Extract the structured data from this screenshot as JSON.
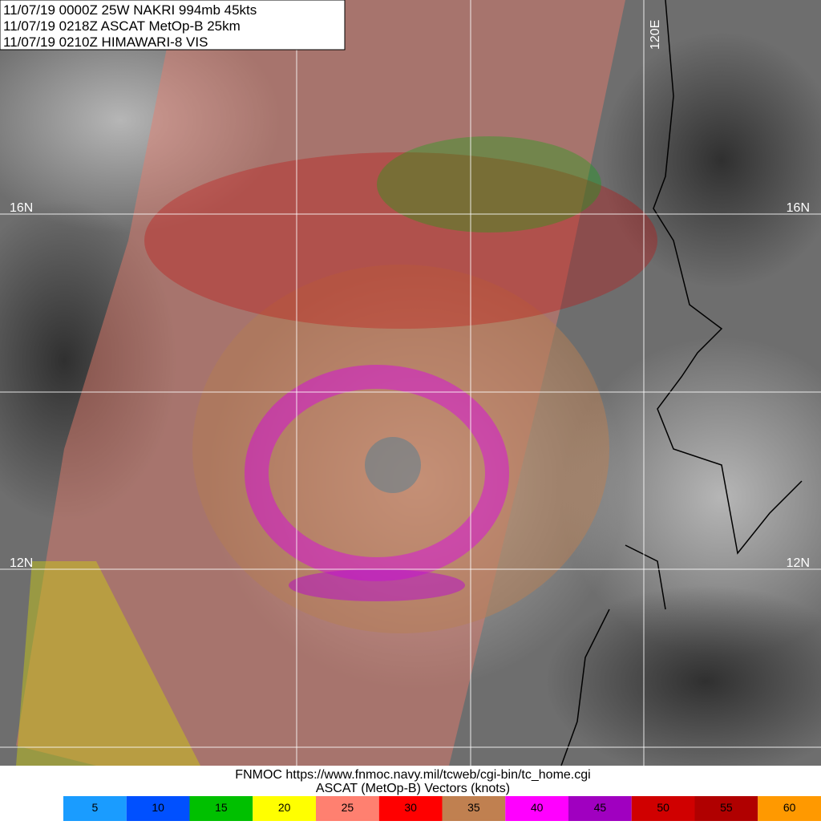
{
  "header": {
    "lines": [
      "11/07/19 0000Z  25W NAKRI 994mb 45kts",
      "11/07/19 0218Z  ASCAT MetOp-B 25km",
      "11/07/19 0210Z  HIMAWARI-8 VIS"
    ]
  },
  "map_labels": {
    "lat_16_left": "16N",
    "lat_16_right": "16N",
    "lat_12_left": "12N",
    "lat_12_right": "12N",
    "lon_120": "120E"
  },
  "footer": {
    "source": "FNMOC https://www.fnmoc.navy.mil/tcweb/cgi-bin/tc_home.cgi",
    "caption": "ASCAT (MetOp-B) Vectors (knots)"
  },
  "colorbar": {
    "entries": [
      {
        "value": 5,
        "color": "#1a9cff"
      },
      {
        "value": 10,
        "color": "#0050ff"
      },
      {
        "value": 15,
        "color": "#00c000"
      },
      {
        "value": 20,
        "color": "#ffff00"
      },
      {
        "value": 25,
        "color": "#ff8070"
      },
      {
        "value": 30,
        "color": "#ff0000"
      },
      {
        "value": 35,
        "color": "#c08050"
      },
      {
        "value": 40,
        "color": "#ff00ff"
      },
      {
        "value": 45,
        "color": "#a000c0"
      },
      {
        "value": 50,
        "color": "#d00000"
      },
      {
        "value": 55,
        "color": "#b00000"
      },
      {
        "value": 60,
        "color": "#ff9900"
      }
    ]
  }
}
